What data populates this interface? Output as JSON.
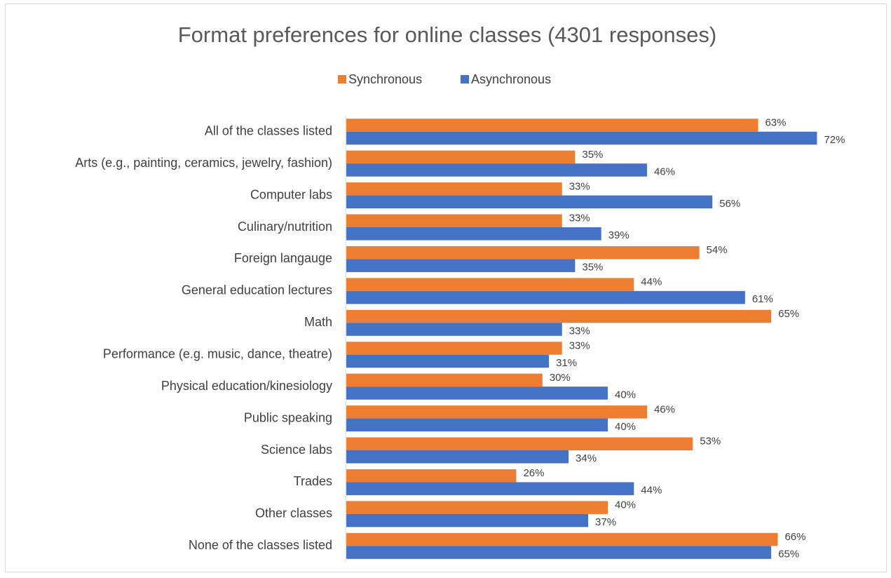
{
  "chart_data": {
    "type": "hbar",
    "title": "Format preferences for online classes (4301 responses)",
    "categories": [
      "All of the classes listed",
      "Arts (e.g., painting, ceramics, jewelry, fashion)",
      "Computer labs",
      "Culinary/nutrition",
      "Foreign langauge",
      "General education lectures",
      "Math",
      "Performance (e.g. music, dance, theatre)",
      "Physical education/kinesiology",
      "Public speaking",
      "Science labs",
      "Trades",
      "Other classes",
      "None of the classes listed"
    ],
    "series": [
      {
        "name": "Synchronous",
        "color": "#ed7d31",
        "values": [
          63,
          35,
          33,
          33,
          54,
          44,
          65,
          33,
          30,
          46,
          53,
          26,
          40,
          66
        ],
        "value_labels": [
          "63%",
          "35%",
          "33%",
          "33%",
          "54%",
          "44%",
          "65%",
          "33%",
          "30%",
          "46%",
          "53%",
          "26%",
          "40%",
          "66%"
        ]
      },
      {
        "name": "Asynchronous",
        "color": "#4472c4",
        "values": [
          72,
          46,
          56,
          39,
          35,
          61,
          33,
          31,
          40,
          40,
          34,
          44,
          37,
          65
        ],
        "value_labels": [
          "72%",
          "46%",
          "56%",
          "39%",
          "35%",
          "61%",
          "33%",
          "31%",
          "40%",
          "40%",
          "34%",
          "44%",
          "37%",
          "65%"
        ]
      }
    ],
    "xlim": [
      0,
      80
    ],
    "legend": "top"
  }
}
